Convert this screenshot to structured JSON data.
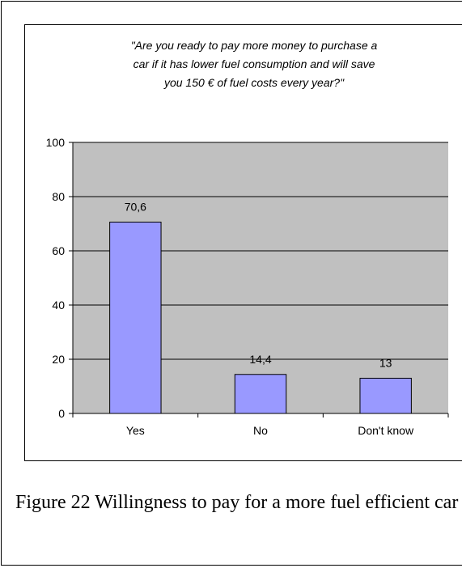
{
  "chart_data": {
    "type": "bar",
    "title_lines": [
      "\"Are you ready to pay more money to purchase a",
      "car if it has lower fuel consumption and will save",
      "you 150 € of fuel costs every year?\""
    ],
    "categories": [
      "Yes",
      "No",
      "Don't know"
    ],
    "values": [
      70.6,
      14.4,
      13
    ],
    "value_labels": [
      "70,6",
      "14,4",
      "13"
    ],
    "ylim": [
      0,
      100
    ],
    "yticks": [
      0,
      20,
      40,
      60,
      80,
      100
    ],
    "grid": true,
    "colors": {
      "plot_background": "#c0c0c0",
      "bar_fill": "#9999ff",
      "bar_stroke": "#000000",
      "gridline": "#000000"
    }
  },
  "caption": "Figure 22 Willingness to pay for a more fuel efficient car"
}
